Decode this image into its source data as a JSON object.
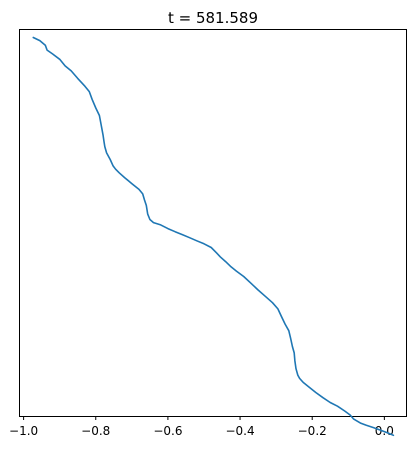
{
  "chart_data": {
    "type": "line",
    "title": "t = 581.589",
    "xlabel": "",
    "ylabel": "",
    "xlim": [
      -1.01,
      0.06
    ],
    "ylim": [
      0,
      1
    ],
    "x_ticks": [
      -1.0,
      -0.8,
      -0.6,
      -0.4,
      -0.2,
      0.0
    ],
    "x_tick_labels": [
      "−1.0",
      "−0.8",
      "−0.6",
      "−0.4",
      "−0.2",
      "0.0"
    ],
    "y_ticks_visible": false,
    "grid": false,
    "color": "#1f77b4",
    "series": [
      {
        "x": [
          -0.973,
          -0.955,
          -0.94,
          -0.935,
          -0.92,
          -0.9,
          -0.885,
          -0.868,
          -0.85,
          -0.83,
          -0.818,
          -0.81,
          -0.8,
          -0.79,
          -0.785,
          -0.78,
          -0.777,
          -0.775,
          -0.77,
          -0.76,
          -0.752,
          -0.745,
          -0.735,
          -0.72,
          -0.7,
          -0.68,
          -0.67,
          -0.665,
          -0.66,
          -0.656,
          -0.65,
          -0.64,
          -0.62,
          -0.6,
          -0.58,
          -0.56,
          -0.54,
          -0.52,
          -0.5,
          -0.48,
          -0.465,
          -0.455,
          -0.44,
          -0.425,
          -0.41,
          -0.39,
          -0.37,
          -0.35,
          -0.33,
          -0.31,
          -0.295,
          -0.285,
          -0.275,
          -0.265,
          -0.26,
          -0.255,
          -0.25,
          -0.248,
          -0.245,
          -0.24,
          -0.235,
          -0.225,
          -0.21,
          -0.19,
          -0.17,
          -0.15,
          -0.13,
          -0.11,
          -0.095,
          -0.085,
          -0.075,
          -0.065,
          -0.05,
          -0.03,
          -0.01,
          0.01,
          0.025
        ],
        "y": [
          0.9805,
          0.9725,
          0.9605,
          0.948,
          0.938,
          0.924,
          0.907,
          0.894,
          0.8745,
          0.8545,
          0.8405,
          0.8205,
          0.798,
          0.7785,
          0.7535,
          0.7285,
          0.709,
          0.698,
          0.6815,
          0.6645,
          0.648,
          0.6395,
          0.63,
          0.6175,
          0.602,
          0.587,
          0.5755,
          0.5595,
          0.5455,
          0.523,
          0.509,
          0.501,
          0.495,
          0.4855,
          0.4775,
          0.47,
          0.462,
          0.454,
          0.446,
          0.4365,
          0.4225,
          0.4125,
          0.4,
          0.3865,
          0.3755,
          0.3615,
          0.344,
          0.3265,
          0.31,
          0.2935,
          0.2775,
          0.2575,
          0.238,
          0.221,
          0.2015,
          0.18,
          0.1635,
          0.1425,
          0.1225,
          0.106,
          0.0975,
          0.087,
          0.076,
          0.061,
          0.0475,
          0.035,
          0.0255,
          0.013,
          0.0025,
          -0.008,
          -0.0135,
          -0.019,
          -0.024,
          -0.03,
          -0.037,
          -0.044,
          -0.05
        ]
      }
    ]
  }
}
